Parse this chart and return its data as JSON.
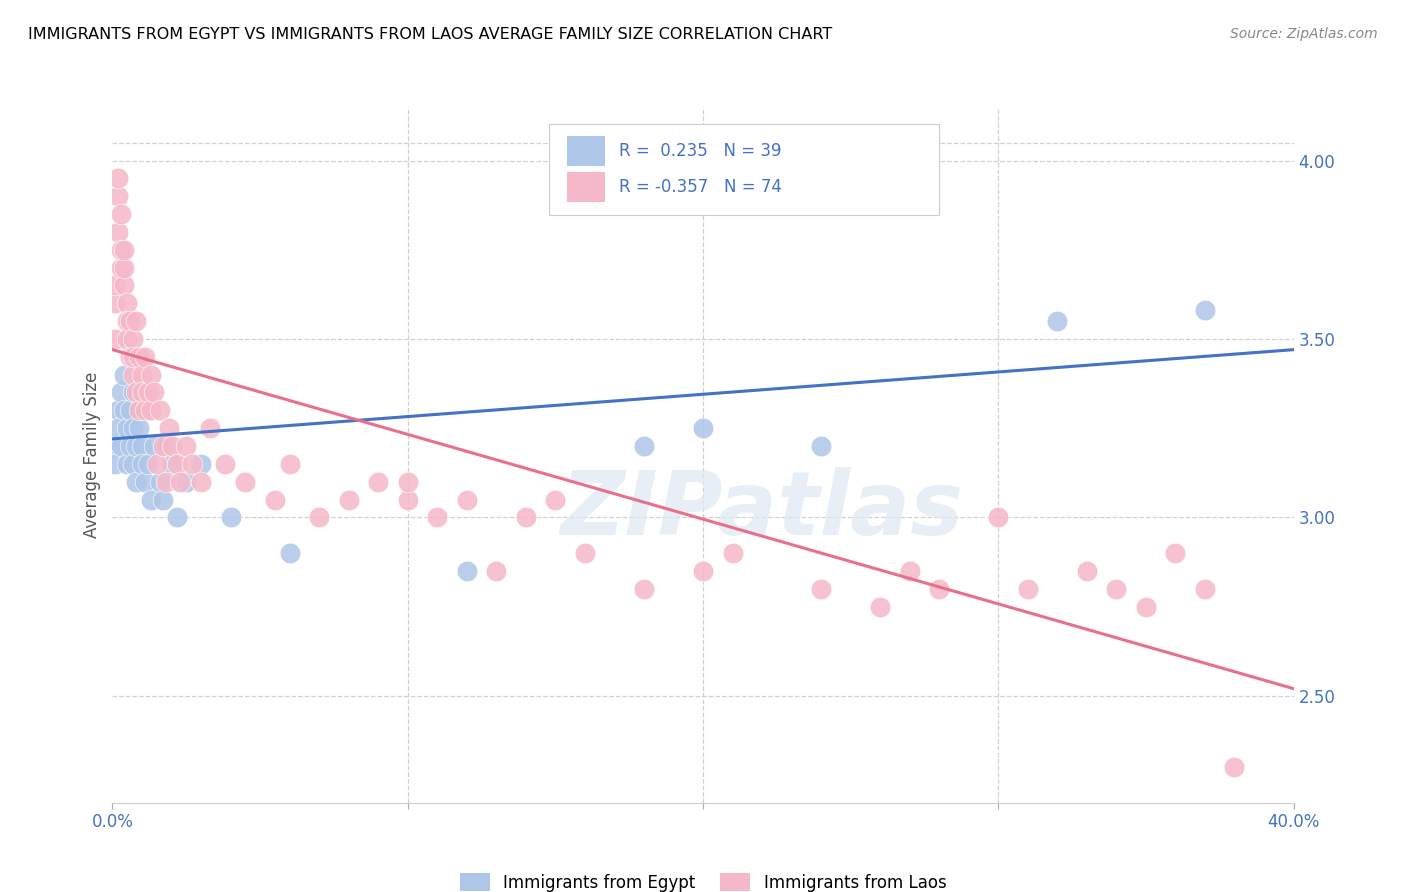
{
  "title": "IMMIGRANTS FROM EGYPT VS IMMIGRANTS FROM LAOS AVERAGE FAMILY SIZE CORRELATION CHART",
  "source": "Source: ZipAtlas.com",
  "ylabel": "Average Family Size",
  "right_yticks": [
    2.5,
    3.0,
    3.5,
    4.0
  ],
  "egypt_R": 0.235,
  "egypt_N": 39,
  "laos_R": -0.357,
  "laos_N": 74,
  "egypt_color": "#aec6e8",
  "laos_color": "#f5b8c8",
  "egypt_line_color": "#4472c4",
  "laos_line_color": "#e8708a",
  "legend_label_egypt": "Immigrants from Egypt",
  "legend_label_laos": "Immigrants from Laos",
  "watermark": "ZIPatlas",
  "xlim": [
    0.0,
    0.4
  ],
  "ylim": [
    2.2,
    4.15
  ],
  "egypt_scatter_x": [
    0.001,
    0.001,
    0.002,
    0.002,
    0.003,
    0.003,
    0.004,
    0.004,
    0.005,
    0.005,
    0.006,
    0.006,
    0.007,
    0.007,
    0.007,
    0.008,
    0.008,
    0.009,
    0.01,
    0.01,
    0.011,
    0.012,
    0.013,
    0.014,
    0.016,
    0.017,
    0.018,
    0.02,
    0.022,
    0.025,
    0.03,
    0.04,
    0.06,
    0.12,
    0.18,
    0.2,
    0.24,
    0.32,
    0.37
  ],
  "egypt_scatter_y": [
    3.2,
    3.15,
    3.3,
    3.25,
    3.35,
    3.2,
    3.4,
    3.3,
    3.15,
    3.25,
    3.3,
    3.2,
    3.35,
    3.25,
    3.15,
    3.2,
    3.1,
    3.25,
    3.2,
    3.15,
    3.1,
    3.15,
    3.05,
    3.2,
    3.1,
    3.05,
    3.2,
    3.15,
    3.0,
    3.1,
    3.15,
    3.0,
    2.9,
    2.85,
    3.2,
    3.25,
    3.2,
    3.55,
    3.58
  ],
  "laos_scatter_x": [
    0.001,
    0.001,
    0.001,
    0.002,
    0.002,
    0.002,
    0.003,
    0.003,
    0.003,
    0.004,
    0.004,
    0.004,
    0.005,
    0.005,
    0.005,
    0.006,
    0.006,
    0.007,
    0.007,
    0.007,
    0.008,
    0.008,
    0.009,
    0.009,
    0.01,
    0.01,
    0.011,
    0.011,
    0.012,
    0.013,
    0.013,
    0.014,
    0.015,
    0.016,
    0.017,
    0.018,
    0.019,
    0.02,
    0.022,
    0.023,
    0.025,
    0.027,
    0.03,
    0.033,
    0.038,
    0.045,
    0.055,
    0.06,
    0.07,
    0.08,
    0.09,
    0.1,
    0.11,
    0.13,
    0.15,
    0.16,
    0.18,
    0.2,
    0.21,
    0.24,
    0.26,
    0.27,
    0.28,
    0.3,
    0.31,
    0.33,
    0.34,
    0.35,
    0.36,
    0.37,
    0.1,
    0.12,
    0.14,
    0.38
  ],
  "laos_scatter_y": [
    3.5,
    3.6,
    3.65,
    3.8,
    3.9,
    3.95,
    3.7,
    3.85,
    3.75,
    3.65,
    3.7,
    3.75,
    3.6,
    3.55,
    3.5,
    3.45,
    3.55,
    3.4,
    3.5,
    3.45,
    3.35,
    3.55,
    3.3,
    3.45,
    3.4,
    3.35,
    3.3,
    3.45,
    3.35,
    3.4,
    3.3,
    3.35,
    3.15,
    3.3,
    3.2,
    3.1,
    3.25,
    3.2,
    3.15,
    3.1,
    3.2,
    3.15,
    3.1,
    3.25,
    3.15,
    3.1,
    3.05,
    3.15,
    3.0,
    3.05,
    3.1,
    3.05,
    3.0,
    2.85,
    3.05,
    2.9,
    2.8,
    2.85,
    2.9,
    2.8,
    2.75,
    2.85,
    2.8,
    3.0,
    2.8,
    2.85,
    2.8,
    2.75,
    2.9,
    2.8,
    3.1,
    3.05,
    3.0,
    2.3
  ],
  "egypt_trendline_x": [
    0.0,
    0.4
  ],
  "egypt_trendline_y": [
    3.22,
    3.47
  ],
  "laos_trendline_x": [
    0.0,
    0.4
  ],
  "laos_trendline_y": [
    3.47,
    2.52
  ]
}
